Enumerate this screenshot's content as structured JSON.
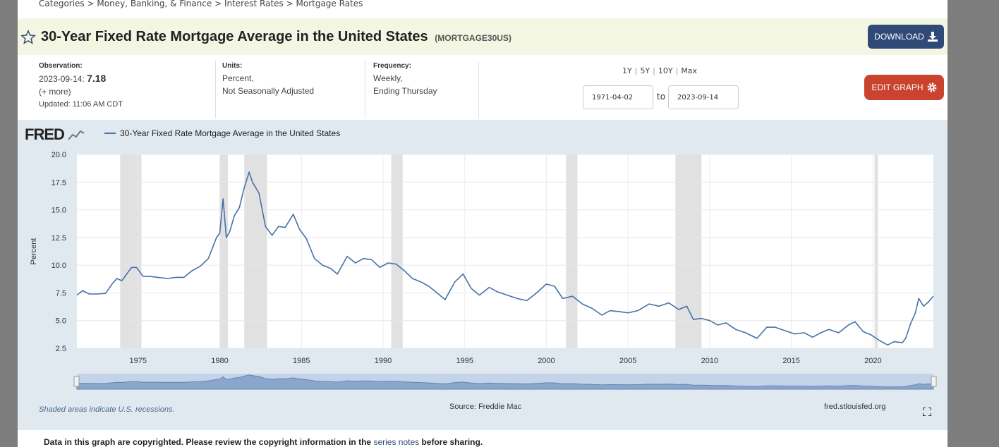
{
  "breadcrumb": [
    "Categories",
    "Money, Banking, & Finance",
    "Interest Rates",
    "Mortgage Rates"
  ],
  "breadcrumb_sep": ">",
  "header": {
    "title": "30-Year Fixed Rate Mortgage Average in the United States",
    "series_id": "(MORTGAGE30US)",
    "download_label": "DOWNLOAD"
  },
  "meta": {
    "observation_label": "Observation:",
    "observation_date": "2023-09-14:",
    "observation_value": "7.18",
    "more": "(+ more)",
    "updated": "Updated: 11:06 AM CDT",
    "units_label": "Units:",
    "units_1": "Percent,",
    "units_2": "Not Seasonally Adjusted",
    "frequency_label": "Frequency:",
    "frequency_1": "Weekly,",
    "frequency_2": "Ending Thursday"
  },
  "ranges": [
    "1Y",
    "5Y",
    "10Y",
    "Max"
  ],
  "dates": {
    "start": "1971-04-02",
    "end": "2023-09-14",
    "to_label": "to"
  },
  "edit_label": "EDIT GRAPH",
  "graph": {
    "logo": "FRED",
    "recession_note": "Shaded areas indicate U.S. recessions.",
    "source": "Source: Freddie Mac",
    "site": "fred.stlouisfed.org"
  },
  "copyright": {
    "before": "Data in this graph are copyrighted. Please review the copyright information in the ",
    "link": "series notes",
    "after": " before sharing."
  },
  "icons": {
    "star": "star-icon",
    "download": "download-icon",
    "gear": "gear-icon",
    "fullscreen": "fullscreen-icon",
    "logo_chart": "fred-chart-icon"
  },
  "colors": {
    "line": "#4572a7",
    "recession": "#e1e1e1",
    "plot_bg": "#ffffff",
    "graph_bg": "#e1e9f0",
    "download": "#304a78",
    "edit": "#c9432f"
  },
  "chart_data": {
    "type": "line",
    "title": "",
    "xlabel": "",
    "ylabel": "Percent",
    "xlim": [
      1971.25,
      2023.7
    ],
    "ylim": [
      2.5,
      20.0
    ],
    "y_ticks": [
      2.5,
      5.0,
      7.5,
      10.0,
      12.5,
      15.0,
      17.5,
      20.0
    ],
    "y_tick_labels": [
      "2.5",
      "5.0",
      "7.5",
      "10.0",
      "12.5",
      "15.0",
      "17.5",
      "20.0"
    ],
    "x_ticks": [
      1975,
      1980,
      1985,
      1990,
      1995,
      2000,
      2005,
      2010,
      2015,
      2020
    ],
    "x_tick_labels": [
      "1975",
      "1980",
      "1985",
      "1990",
      "1995",
      "2000",
      "2005",
      "2010",
      "2015",
      "2020"
    ],
    "grid": true,
    "legend": "top-left",
    "recessions": [
      [
        1973.9,
        1975.2
      ],
      [
        1980.0,
        1980.5
      ],
      [
        1981.5,
        1982.9
      ],
      [
        1990.5,
        1991.2
      ],
      [
        2001.2,
        2001.9
      ],
      [
        2007.9,
        2009.5
      ],
      [
        2020.1,
        2020.3
      ]
    ],
    "series": [
      {
        "name": "30-Year Fixed Rate Mortgage Average in the United States",
        "x": [
          1971.25,
          1971.6,
          1972.0,
          1972.5,
          1973.0,
          1973.4,
          1973.7,
          1974.0,
          1974.6,
          1974.9,
          1975.3,
          1975.7,
          1976.2,
          1976.8,
          1977.3,
          1977.8,
          1978.3,
          1978.8,
          1979.3,
          1979.8,
          1980.0,
          1980.2,
          1980.4,
          1980.6,
          1980.9,
          1981.2,
          1981.5,
          1981.8,
          1982.0,
          1982.4,
          1982.8,
          1983.2,
          1983.6,
          1984.0,
          1984.5,
          1984.9,
          1985.3,
          1985.8,
          1986.3,
          1986.8,
          1987.2,
          1987.8,
          1988.3,
          1988.8,
          1989.3,
          1989.8,
          1990.3,
          1990.8,
          1991.3,
          1991.8,
          1992.3,
          1992.8,
          1993.3,
          1993.8,
          1994.4,
          1994.9,
          1995.4,
          1995.9,
          1996.5,
          1997.0,
          1997.6,
          1998.2,
          1998.8,
          1999.4,
          2000.0,
          2000.5,
          2001.0,
          2001.6,
          2002.2,
          2002.8,
          2003.4,
          2003.9,
          2004.5,
          2005.0,
          2005.6,
          2006.3,
          2006.9,
          2007.5,
          2008.1,
          2008.6,
          2009.0,
          2009.5,
          2010.0,
          2010.5,
          2011.0,
          2011.6,
          2012.2,
          2012.9,
          2013.5,
          2014.0,
          2014.6,
          2015.2,
          2015.8,
          2016.3,
          2016.8,
          2017.3,
          2017.9,
          2018.5,
          2018.9,
          2019.4,
          2019.9,
          2020.4,
          2020.9,
          2021.3,
          2021.8,
          2022.0,
          2022.3,
          2022.6,
          2022.8,
          2023.1,
          2023.4,
          2023.7
        ],
        "values": [
          7.3,
          7.7,
          7.4,
          7.4,
          7.45,
          8.3,
          8.8,
          8.6,
          9.8,
          9.8,
          9.0,
          9.0,
          8.9,
          8.8,
          8.9,
          8.9,
          9.5,
          9.9,
          10.6,
          12.5,
          12.9,
          16.0,
          12.5,
          13.0,
          14.5,
          15.2,
          17.0,
          18.4,
          17.5,
          16.5,
          13.5,
          12.7,
          13.5,
          13.4,
          14.6,
          13.2,
          12.4,
          10.6,
          10.0,
          9.7,
          9.2,
          10.8,
          10.2,
          10.6,
          10.5,
          9.8,
          10.2,
          10.1,
          9.5,
          8.8,
          8.5,
          8.1,
          7.5,
          6.9,
          8.5,
          9.2,
          7.9,
          7.3,
          8.0,
          7.6,
          7.3,
          7.0,
          6.8,
          7.5,
          8.3,
          8.1,
          7.0,
          7.2,
          6.5,
          6.1,
          5.5,
          5.9,
          5.8,
          5.7,
          5.9,
          6.5,
          6.3,
          6.6,
          6.0,
          6.3,
          5.1,
          5.2,
          5.0,
          4.6,
          4.8,
          4.2,
          3.9,
          3.4,
          4.4,
          4.4,
          4.1,
          3.8,
          3.9,
          3.5,
          3.9,
          4.2,
          3.9,
          4.6,
          4.9,
          4.0,
          3.7,
          3.2,
          2.8,
          3.1,
          3.0,
          3.4,
          4.7,
          5.7,
          7.0,
          6.3,
          6.7,
          7.2
        ]
      }
    ]
  }
}
